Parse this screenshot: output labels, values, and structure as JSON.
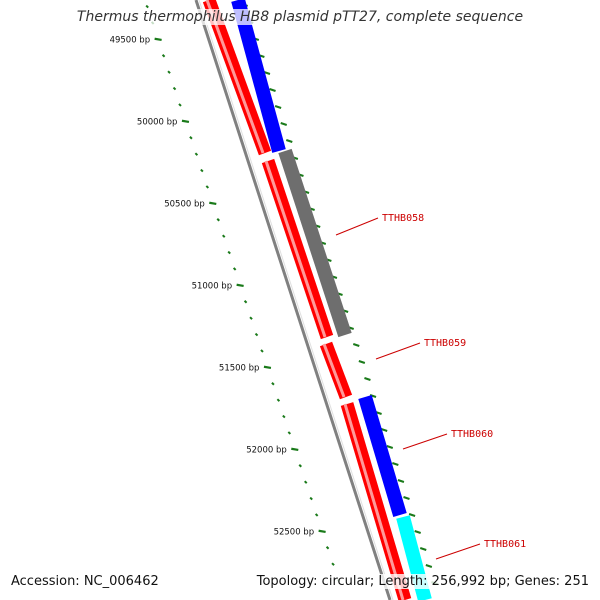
{
  "title": "Thermus thermophilus HB8 plasmid pTT27, complete sequence",
  "footer": {
    "accession": "Accession: NC_006462",
    "summary": "Topology: circular; Length: 256,992 bp; Genes: 251"
  },
  "colors": {
    "forward_orf": "#ff0000",
    "reverse_orf_blue": "#0000ff",
    "reverse_orf_gray": "#6e6e6e",
    "reverse_orf_cyan": "#00ffff",
    "backbone": "#808080",
    "tick": "#1a7a1a",
    "gene_label": "#cc0000"
  },
  "scale_ticks": [
    {
      "bp": 49500,
      "label": "49500 bp"
    },
    {
      "bp": 50000,
      "label": "50000 bp"
    },
    {
      "bp": 50500,
      "label": "50500 bp"
    },
    {
      "bp": 51000,
      "label": "51000 bp"
    },
    {
      "bp": 51500,
      "label": "51500 bp"
    },
    {
      "bp": 52000,
      "label": "52000 bp"
    },
    {
      "bp": 52500,
      "label": "52500 bp"
    }
  ],
  "genes": [
    {
      "id": "TTHB058",
      "label": "TTHB058"
    },
    {
      "id": "TTHB059",
      "label": "TTHB059"
    },
    {
      "id": "TTHB060",
      "label": "TTHB060"
    },
    {
      "id": "TTHB061",
      "label": "TTHB061"
    }
  ]
}
